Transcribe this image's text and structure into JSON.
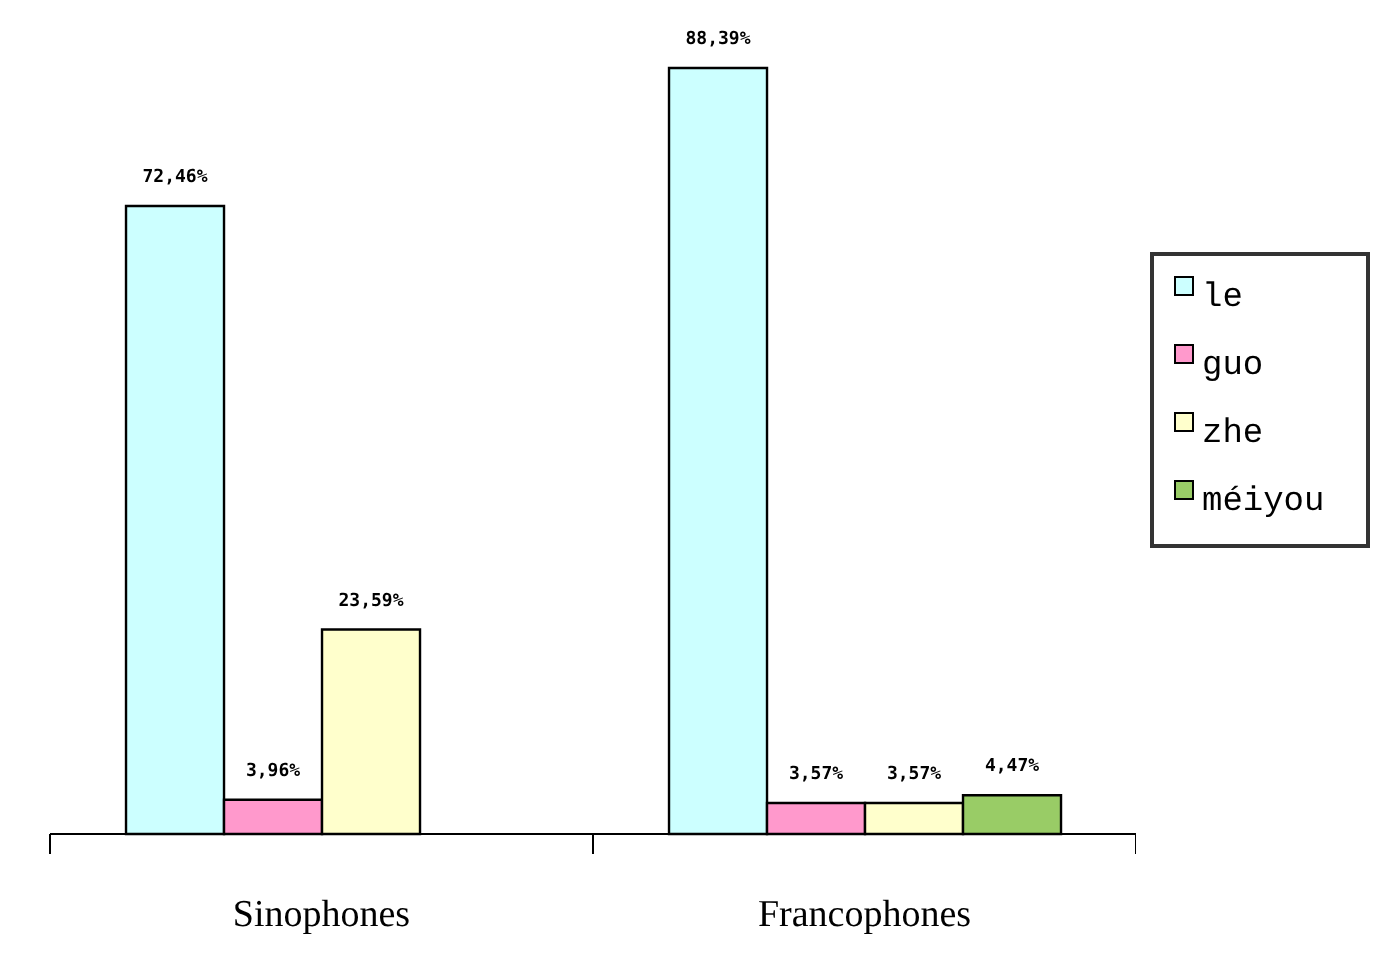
{
  "chart_data": {
    "type": "bar",
    "categories": [
      "Sinophones",
      "Francophones"
    ],
    "series": [
      {
        "name": "le",
        "color": "#ccffff",
        "values": [
          72.46,
          88.39
        ],
        "value_labels": [
          "72,46%",
          "88,39%"
        ]
      },
      {
        "name": "guo",
        "color": "#ff99cc",
        "values": [
          3.96,
          3.57
        ],
        "value_labels": [
          "3,96%",
          "3,57%"
        ]
      },
      {
        "name": "zhe",
        "color": "#ffffcc",
        "values": [
          23.59,
          3.57
        ],
        "value_labels": [
          "23,59%",
          "3,57%"
        ]
      },
      {
        "name": "méiyou",
        "color": "#99cc66",
        "values": [
          null,
          4.47
        ],
        "value_labels": [
          null,
          "4,47%"
        ]
      }
    ],
    "legend": "right",
    "grid": false
  }
}
